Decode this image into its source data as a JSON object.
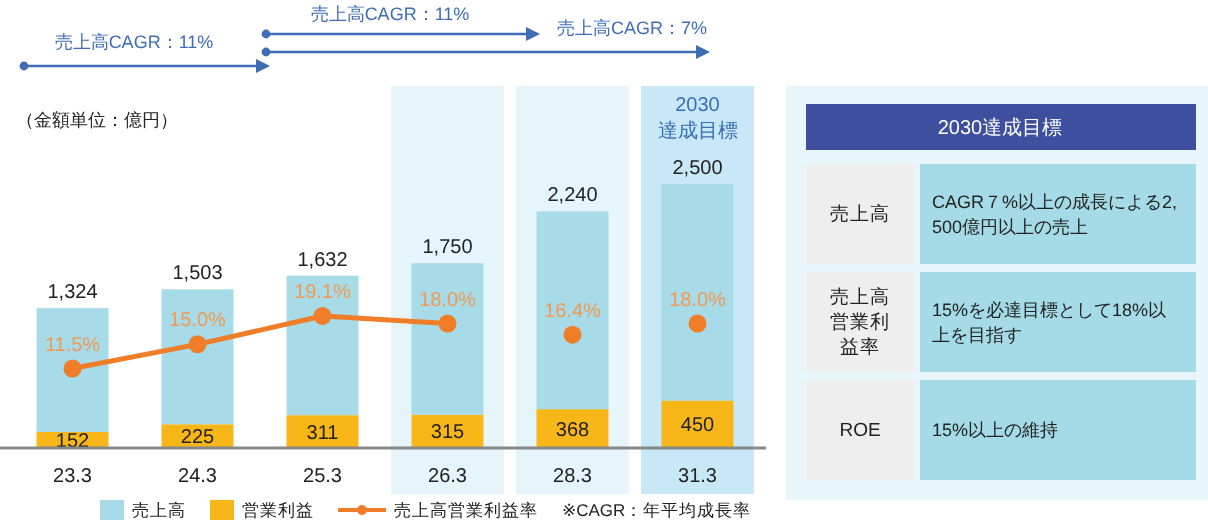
{
  "chart_data": [
    {
      "type": "bar",
      "stacked": true,
      "legend": "bottom",
      "categories": [
        "23.3",
        "24.3",
        "25.3",
        "26.3",
        "28.3",
        "31.3"
      ],
      "series": [
        {
          "name": "営業利益",
          "color": "#f7b718",
          "values": [
            152,
            225,
            311,
            315,
            368,
            450
          ],
          "value_labels": [
            "152",
            "225",
            "311",
            "315",
            "368",
            "450"
          ]
        },
        {
          "name": "売上高",
          "color": "#a6dbe7",
          "values": [
            1172,
            1278,
            1321,
            1435,
            1872,
            2050
          ]
        },
        {
          "name": "売上高営業利益率",
          "type": "line",
          "axis": "y2",
          "marker": "circle",
          "color": "#f07d28",
          "values": [
            11.5,
            15.0,
            19.1,
            18.0,
            null,
            null
          ],
          "value_labels": [
            "11.5%",
            "15.0%",
            "19.1%",
            "18.0%",
            null,
            null
          ]
        },
        {
          "type": "scatter",
          "axis": "y2",
          "marker": "circle",
          "color": "#f07d28",
          "values": [
            null,
            null,
            null,
            null,
            16.4,
            18.0
          ],
          "value_labels": [
            null,
            null,
            null,
            null,
            "16.4%",
            "18.0%"
          ]
        }
      ],
      "totals": [
        "1,324",
        "1,503",
        "1,632",
        "1,750",
        "2,240",
        "2,500"
      ],
      "bands": [
        {
          "axis": "x",
          "from": "26.3",
          "to": "26.3",
          "color": "#e6f4fc"
        },
        {
          "axis": "x",
          "from": "28.3",
          "to": "28.3",
          "color": "#e6f4fc"
        },
        {
          "axis": "x",
          "from": "31.3",
          "to": "31.3",
          "color": "#c8e8f7",
          "label": "2030\n達成目標"
        }
      ],
      "annotations": [
        "売上高CAGR：11%",
        "売上高CAGR：11%",
        "売上高CAGR：7%",
        "（金額単位：億円）",
        "※CAGR：年平均成長率"
      ]
    },
    {
      "type": "other",
      "title": "2030達成目標",
      "annotations": [
        "売上高",
        "CAGR７%以上の成長による2,500億円以上の売上",
        "売上高営業利益率",
        "15%を必達目標として18%以上を目指す",
        "ROE",
        "15%以上の維持"
      ]
    }
  ]
}
